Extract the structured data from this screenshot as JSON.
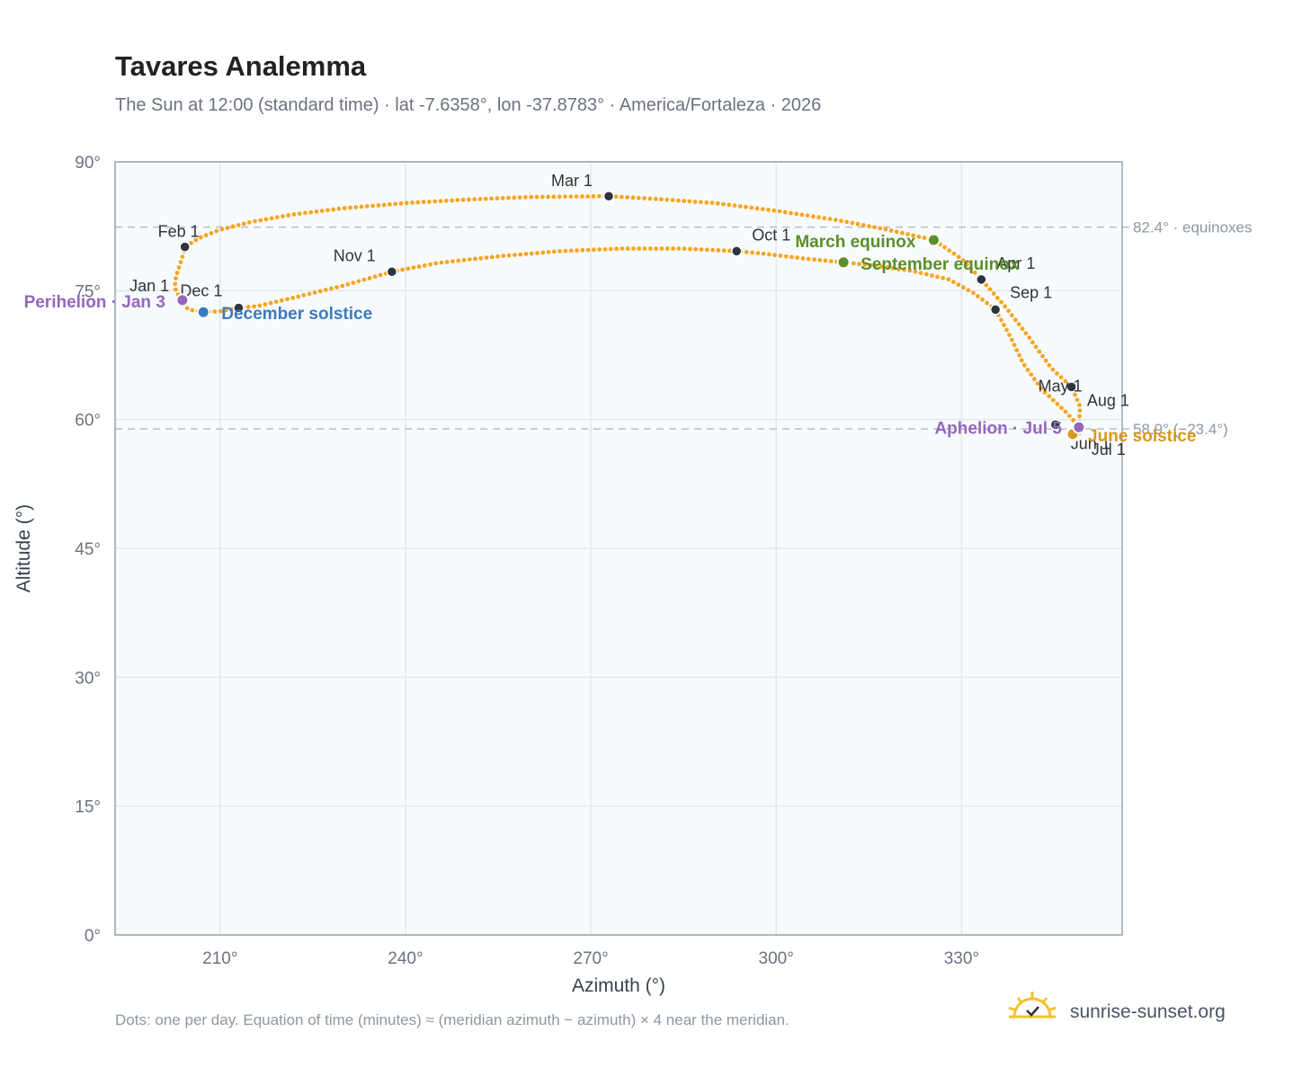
{
  "title": "Tavares Analemma",
  "subtitle": "The Sun at 12:00 (standard time) · lat -7.6358°, lon -37.8783° · America/Fortaleza · 2026",
  "footnote": "Dots: one per day. Equation of time (minutes) ≈ (meridian azimuth − azimuth) × 4 near the meridian.",
  "brand": {
    "name": "sunrise-sunset.org",
    "icon": "sun-logo-icon"
  },
  "colors": {
    "plot_bg": "#f8fbfd",
    "frame": "#9aa3b0",
    "grid": "#e3e8ee",
    "curve": "#f5a623",
    "month_point": "#2d3440",
    "equinox": "#5a8f29",
    "december_solstice": "#3a7abf",
    "june_solstice": "#d69a1a",
    "apsis": "#9467bd",
    "ref_line": "#b8bec7"
  },
  "chart_data": {
    "type": "scatter",
    "title": "Tavares Analemma",
    "xlabel": "Azimuth (°)",
    "ylabel": "Altitude (°)",
    "xlim": [
      193,
      356
    ],
    "ylim": [
      0,
      90
    ],
    "x_ticks": [
      {
        "value": 210,
        "label": "210°"
      },
      {
        "value": 240,
        "label": "240°"
      },
      {
        "value": 270,
        "label": "270°"
      },
      {
        "value": 300,
        "label": "300°"
      },
      {
        "value": 330,
        "label": "330°"
      }
    ],
    "y_ticks": [
      {
        "value": 0,
        "label": "0°"
      },
      {
        "value": 15,
        "label": "15°"
      },
      {
        "value": 30,
        "label": "30°"
      },
      {
        "value": 45,
        "label": "45°"
      },
      {
        "value": 60,
        "label": "60°"
      },
      {
        "value": 75,
        "label": "75°"
      },
      {
        "value": 90,
        "label": "90°"
      }
    ],
    "grid": true,
    "reference_lines": [
      {
        "value": 82.4,
        "label": "82.4° · equinoxes"
      },
      {
        "value": 58.9,
        "label": "58.9° (−23.4°)"
      }
    ],
    "month_points": [
      {
        "label": "Jan 1",
        "az": 203.8,
        "alt": 74.0,
        "anchor": "end",
        "dx": -14,
        "dy": -9
      },
      {
        "label": "Feb 1",
        "az": 204.3,
        "alt": 80.1,
        "anchor": "end",
        "dx": 16,
        "dy": -11
      },
      {
        "label": "Mar 1",
        "az": 272.9,
        "alt": 86.0,
        "anchor": "end",
        "dx": -18,
        "dy": -11
      },
      {
        "label": "Apr 1",
        "az": 333.2,
        "alt": 76.3,
        "anchor": "start",
        "dx": 17,
        "dy": -12
      },
      {
        "label": "May 1",
        "az": 347.8,
        "alt": 63.8,
        "anchor": "end",
        "dx": 12,
        "dy": 5
      },
      {
        "label": "Jun 1",
        "az": 345.2,
        "alt": 59.4,
        "anchor": "start",
        "dx": 17,
        "dy": 27
      },
      {
        "label": "Jul 1",
        "az": 348.1,
        "alt": 58.0,
        "anchor": "start",
        "dx": 20,
        "dy": 20
      },
      {
        "label": "Aug 1",
        "az": 349.0,
        "alt": 59.2,
        "anchor": "start",
        "dx": 9,
        "dy": -23
      },
      {
        "label": "Sep 1",
        "az": 335.5,
        "alt": 72.8,
        "anchor": "start",
        "dx": 16,
        "dy": -13
      },
      {
        "label": "Oct 1",
        "az": 293.6,
        "alt": 79.6,
        "anchor": "start",
        "dx": 17,
        "dy": -12
      },
      {
        "label": "Nov 1",
        "az": 237.8,
        "alt": 77.2,
        "anchor": "end",
        "dx": -18,
        "dy": -12
      },
      {
        "label": "Dec 1",
        "az": 213.0,
        "alt": 73.0,
        "anchor": "end",
        "dx": -18,
        "dy": -13
      }
    ],
    "events": [
      {
        "label": "March equinox",
        "az": 325.5,
        "alt": 80.9,
        "color_key": "equinox",
        "anchor": "end",
        "dx": -20,
        "dy": 8
      },
      {
        "label": "September equinox",
        "az": 310.9,
        "alt": 78.3,
        "color_key": "equinox",
        "anchor": "start",
        "dx": 19,
        "dy": 8
      },
      {
        "label": "June solstice",
        "az": 348.0,
        "alt": 58.3,
        "color_key": "june_solstice",
        "anchor": "start",
        "dx": 17,
        "dy": 8
      },
      {
        "label": "December solstice",
        "az": 207.3,
        "alt": 72.5,
        "color_key": "december_solstice",
        "anchor": "start",
        "dx": 20,
        "dy": 8
      },
      {
        "label": "Perihelion · Jan 3",
        "az": 203.9,
        "alt": 73.9,
        "color_key": "apsis",
        "anchor": "end",
        "dx": -19,
        "dy": 8
      },
      {
        "label": "Aphelion · Jul 5",
        "az": 349.0,
        "alt": 59.1,
        "color_key": "apsis",
        "anchor": "end",
        "dx": -19,
        "dy": 7
      }
    ],
    "daily_path": [
      [
        203.7,
        74.0
      ],
      [
        202.8,
        75.0
      ],
      [
        202.7,
        76.0
      ],
      [
        203.0,
        77.0
      ],
      [
        203.5,
        78.0
      ],
      [
        204.4,
        80.1
      ],
      [
        206.5,
        81.1
      ],
      [
        210.0,
        82.1
      ],
      [
        215.0,
        83.0
      ],
      [
        222.0,
        83.9
      ],
      [
        230.0,
        84.6
      ],
      [
        240.0,
        85.2
      ],
      [
        250.0,
        85.6
      ],
      [
        260.0,
        85.9
      ],
      [
        272.9,
        86.0
      ],
      [
        280.0,
        85.7
      ],
      [
        290.0,
        85.2
      ],
      [
        300.0,
        84.3
      ],
      [
        310.0,
        83.2
      ],
      [
        318.0,
        82.1
      ],
      [
        325.5,
        80.9
      ],
      [
        330.0,
        78.7
      ],
      [
        333.2,
        76.3
      ],
      [
        337.0,
        73.2
      ],
      [
        341.0,
        69.5
      ],
      [
        344.5,
        66.0
      ],
      [
        347.8,
        63.8
      ],
      [
        349.2,
        61.5
      ],
      [
        349.0,
        59.5
      ],
      [
        348.0,
        58.2
      ],
      [
        348.1,
        58.0
      ],
      [
        349.2,
        58.4
      ],
      [
        349.0,
        59.2
      ],
      [
        347.0,
        60.8
      ],
      [
        343.0,
        63.5
      ],
      [
        340.0,
        66.5
      ],
      [
        338.0,
        69.5
      ],
      [
        335.5,
        72.8
      ],
      [
        332.0,
        74.7
      ],
      [
        328.0,
        76.3
      ],
      [
        322.0,
        77.3
      ],
      [
        316.0,
        77.9
      ],
      [
        310.9,
        78.3
      ],
      [
        305.0,
        78.7
      ],
      [
        298.0,
        79.3
      ],
      [
        293.6,
        79.6
      ],
      [
        285.0,
        79.9
      ],
      [
        275.0,
        79.9
      ],
      [
        265.0,
        79.6
      ],
      [
        255.0,
        79.0
      ],
      [
        245.0,
        78.2
      ],
      [
        237.8,
        77.2
      ],
      [
        230.0,
        75.6
      ],
      [
        222.0,
        74.2
      ],
      [
        216.0,
        73.2
      ],
      [
        213.0,
        73.0
      ],
      [
        210.0,
        72.6
      ],
      [
        207.3,
        72.5
      ],
      [
        205.0,
        72.8
      ],
      [
        204.0,
        73.3
      ],
      [
        203.7,
        74.0
      ]
    ]
  }
}
